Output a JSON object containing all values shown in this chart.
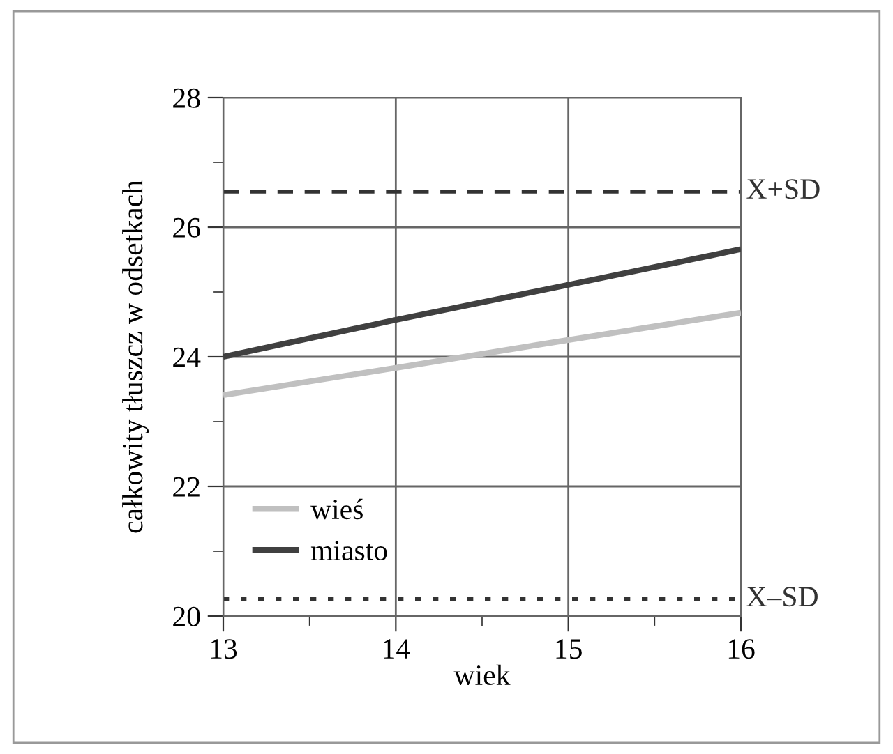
{
  "chart_data": {
    "type": "line",
    "xlabel": "wiek",
    "ylabel": "całkowity tłuszcz w odsetkach",
    "x": [
      13,
      14,
      15,
      16
    ],
    "series": [
      {
        "name": "wieś",
        "color": "#c0c0c0",
        "values": [
          23.41,
          23.83,
          24.26,
          24.68
        ]
      },
      {
        "name": "miasto",
        "color": "#404040",
        "values": [
          24.0,
          24.57,
          25.11,
          25.66
        ]
      }
    ],
    "xlim": [
      13,
      16
    ],
    "ylim": [
      20,
      28
    ],
    "xticks": [
      13,
      {
        "value": 13.5,
        "label": null
      },
      14,
      {
        "value": 14.5,
        "label": null
      },
      15,
      {
        "value": 15.5,
        "label": null
      },
      16
    ],
    "yticks": [
      20,
      {
        "value": 21,
        "label": null
      },
      22,
      {
        "value": 23,
        "label": null
      },
      24,
      {
        "value": 25,
        "label": null
      },
      26,
      {
        "value": 27,
        "label": null
      },
      28
    ],
    "ref_lines": [
      {
        "axis": "y",
        "value": 26.55,
        "label": "X+SD",
        "color": "#333333",
        "line_style": "dashed"
      },
      {
        "axis": "y",
        "value": 20.26,
        "label": "X–SD",
        "color": "#333333",
        "line_style": "dotted"
      }
    ],
    "grid": true,
    "legend": "bottom left",
    "marker": "none",
    "line_style": "solid"
  }
}
